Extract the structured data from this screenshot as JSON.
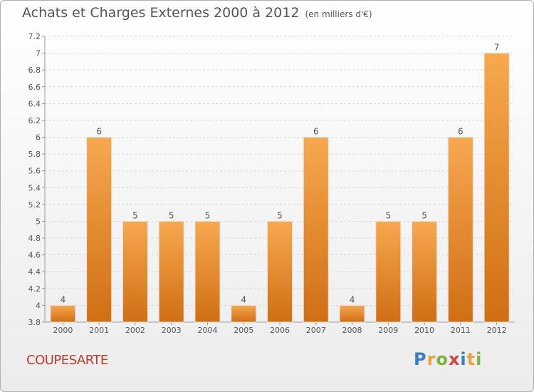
{
  "header": {
    "title": "Achats et Charges Externes 2000 à 2012",
    "unit": "(en milliers d'€)"
  },
  "footer": {
    "commune": "COUPESARTE",
    "logo_text": "Proxiti"
  },
  "colors": {
    "bar_top": "#f7a84e",
    "bar_bottom": "#d06e14",
    "title": "#555555",
    "commune": "#c0392b"
  },
  "chart_data": {
    "type": "bar",
    "categories": [
      "2000",
      "2001",
      "2002",
      "2003",
      "2004",
      "2005",
      "2006",
      "2007",
      "2008",
      "2009",
      "2010",
      "2011",
      "2012"
    ],
    "values": [
      4,
      6,
      5,
      5,
      5,
      4,
      5,
      6,
      4,
      5,
      5,
      6,
      7
    ],
    "data_labels": [
      "4",
      "6",
      "5",
      "5",
      "5",
      "4",
      "5",
      "6",
      "4",
      "5",
      "5",
      "6",
      "7"
    ],
    "ylim": [
      3.8,
      7.2
    ],
    "yticks": [
      3.8,
      4,
      4.2,
      4.4,
      4.6,
      4.8,
      5,
      5.2,
      5.4,
      5.6,
      5.8,
      6,
      6.2,
      6.4,
      6.6,
      6.8,
      7,
      7.2
    ],
    "ytick_labels": [
      "3.8",
      "4",
      "4.2",
      "4.4",
      "4.6",
      "4.8",
      "5",
      "5.2",
      "5.4",
      "5.6",
      "5.8",
      "6",
      "6.2",
      "6.4",
      "6.6",
      "6.8",
      "7",
      "7.2"
    ],
    "grid": true,
    "legend": "none"
  }
}
